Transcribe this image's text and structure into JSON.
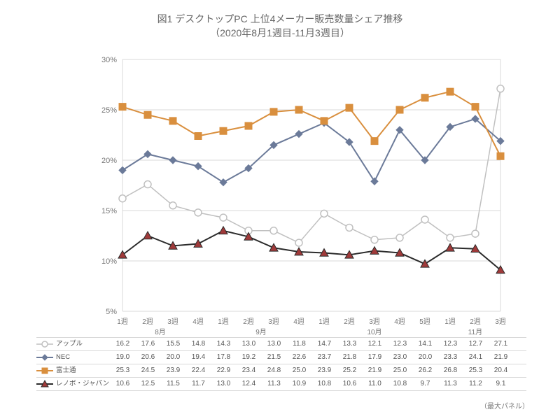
{
  "title_line1": "図1 デスクトップPC 上位4メーカー販売数量シェア推移",
  "title_line2": "（2020年8月1週目-11月3週目）",
  "footnote": "（最大パネル）",
  "chart": {
    "type": "line",
    "ylim": [
      5,
      30
    ],
    "ytick_step": 5,
    "ytick_format_suffix": "%",
    "background_color": "#ffffff",
    "grid_color": "#d9d9d9",
    "axis_color": "#bdbdbd",
    "title_fontsize": 14,
    "label_fontsize": 11,
    "legend_fontsize": 10,
    "weeks": [
      "1週",
      "2週",
      "3週",
      "4週",
      "1週",
      "2週",
      "3週",
      "4週",
      "1週",
      "2週",
      "3週",
      "4週",
      "5週",
      "1週",
      "2週",
      "3週"
    ],
    "months": [
      {
        "label": "8月",
        "span": [
          0,
          3
        ]
      },
      {
        "label": "9月",
        "span": [
          4,
          7
        ]
      },
      {
        "label": "10月",
        "span": [
          8,
          12
        ]
      },
      {
        "label": "11月",
        "span": [
          13,
          15
        ]
      }
    ],
    "series": [
      {
        "name": "アップル",
        "color": "#c0c0c0",
        "marker": "circle",
        "line_width": 1.5,
        "marker_fill": "#ffffff",
        "marker_size": 5,
        "data": [
          16.2,
          17.6,
          15.5,
          14.8,
          14.3,
          13.0,
          13.0,
          11.8,
          14.7,
          13.3,
          12.1,
          12.3,
          14.1,
          12.3,
          12.7,
          27.1
        ]
      },
      {
        "name": "NEC",
        "color": "#6b7a99",
        "marker": "diamond",
        "line_width": 2,
        "marker_fill": "#6b7a99",
        "marker_size": 5,
        "data": [
          19.0,
          20.6,
          20.0,
          19.4,
          17.8,
          19.2,
          21.5,
          22.6,
          23.7,
          21.8,
          17.9,
          23.0,
          20.0,
          23.3,
          24.1,
          21.9
        ]
      },
      {
        "name": "富士通",
        "color": "#d98f3e",
        "marker": "square",
        "line_width": 2,
        "marker_fill": "#d98f3e",
        "marker_size": 5,
        "data": [
          25.3,
          24.5,
          23.9,
          22.4,
          22.9,
          23.4,
          24.8,
          25.0,
          23.9,
          25.2,
          21.9,
          25.0,
          26.2,
          26.8,
          25.3,
          20.4
        ]
      },
      {
        "name": "レノボ・ジャパン",
        "color": "#2b2b2b",
        "marker": "triangle",
        "line_width": 2,
        "marker_fill": "#a03a3a",
        "marker_size": 6,
        "data": [
          10.6,
          12.5,
          11.5,
          11.7,
          13.0,
          12.4,
          11.3,
          10.9,
          10.8,
          10.6,
          11.0,
          10.8,
          9.7,
          11.3,
          11.2,
          9.1
        ]
      }
    ]
  }
}
